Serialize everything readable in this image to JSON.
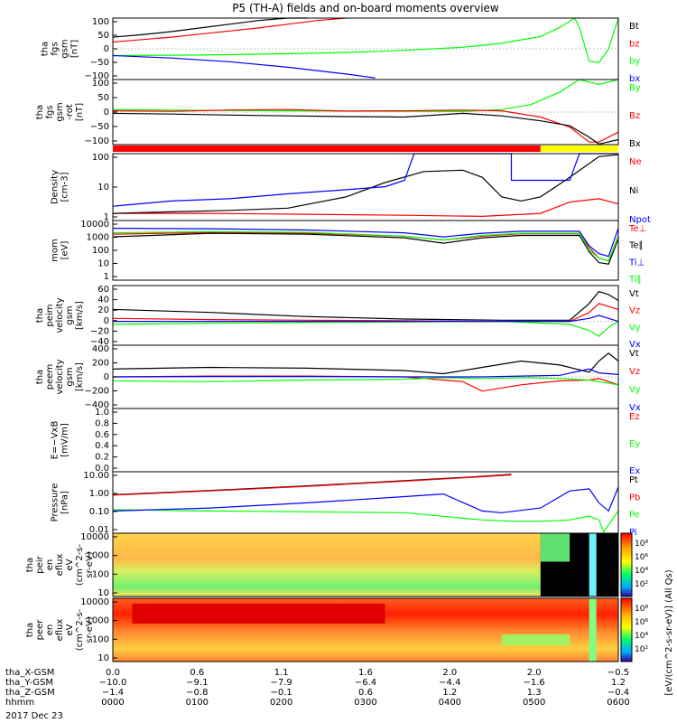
{
  "title": "P5 (TH-A) fields and on-board moments overview",
  "date": "2017 Dec 23",
  "colors": {
    "black": "#000000",
    "red": "#ff0000",
    "green": "#00ff00",
    "blue": "#0000ff",
    "yellow": "#ffff00"
  },
  "chart_data": [
    {
      "type": "line",
      "panel": "fgs",
      "ylabel": [
        "tha",
        "fgs",
        "gsm",
        "[nT]"
      ],
      "yticks": [
        "100",
        "50",
        "0",
        "−50",
        "−100"
      ],
      "ylim": [
        -100,
        100
      ],
      "series": [
        {
          "name": "Bt",
          "color": "#000000",
          "x": [
            0,
            30,
            60,
            90,
            120,
            150,
            180,
            200
          ],
          "y": [
            38,
            46,
            56,
            68,
            80,
            92,
            100,
            102
          ]
        },
        {
          "name": "bz",
          "color": "#ff0000",
          "x": [
            0,
            30,
            60,
            90,
            120,
            150,
            180,
            210,
            240
          ],
          "y": [
            22,
            30,
            38,
            48,
            58,
            68,
            80,
            92,
            100
          ]
        },
        {
          "name": "by",
          "color": "#00ff00",
          "x": [
            0,
            60,
            120,
            180,
            240,
            300,
            360,
            400,
            440,
            460,
            470,
            475,
            480,
            490,
            500,
            510,
            520
          ],
          "y": [
            -22,
            -21,
            -19,
            -16,
            -12,
            -5,
            5,
            18,
            40,
            70,
            90,
            100,
            70,
            -40,
            -45,
            0,
            100
          ]
        },
        {
          "name": "bx",
          "color": "#0000ff",
          "x": [
            0,
            60,
            120,
            180,
            240,
            270
          ],
          "y": [
            -22,
            -30,
            -42,
            -60,
            -82,
            -95
          ]
        }
      ]
    },
    {
      "type": "line",
      "panel": "fgs-rot",
      "ylabel": [
        "tha",
        "fgs",
        "gsm",
        "-rot",
        "[nT]"
      ],
      "yticks": [
        "100",
        "50",
        "0",
        "−50",
        "−100"
      ],
      "ylim": [
        -130,
        130
      ],
      "series": [
        {
          "name": "By",
          "color": "#00ff00",
          "x": [
            0,
            60,
            120,
            180,
            240,
            300,
            360,
            400,
            430,
            460,
            480,
            500,
            520
          ],
          "y": [
            10,
            8,
            6,
            5,
            4,
            3,
            2,
            10,
            30,
            80,
            130,
            110,
            130
          ]
        },
        {
          "name": "Bz",
          "color": "#ff0000",
          "x": [
            0,
            60,
            120,
            180,
            240,
            300,
            360,
            400,
            440,
            470,
            490,
            500,
            520
          ],
          "y": [
            5,
            3,
            8,
            10,
            4,
            5,
            8,
            5,
            -20,
            -60,
            -120,
            -120,
            -80
          ]
        },
        {
          "name": "Bx",
          "color": "#000000",
          "x": [
            0,
            60,
            120,
            180,
            240,
            300,
            360,
            400,
            440,
            470,
            490,
            500,
            520
          ],
          "y": [
            -5,
            -8,
            -12,
            -15,
            -18,
            -20,
            -5,
            -15,
            -35,
            -55,
            -100,
            -128,
            -110
          ]
        }
      ]
    },
    {
      "type": "line",
      "panel": "density",
      "ylabel": [
        "Density",
        "[cm-3]"
      ],
      "yticks": [
        "100",
        "10",
        "1"
      ],
      "ylim": [
        0.3,
        200
      ],
      "scale": "log",
      "series": [
        {
          "name": "Ne",
          "color": "#ff0000",
          "x": [
            0,
            100,
            200,
            300,
            380,
            440,
            470,
            500,
            520
          ],
          "y": [
            0.6,
            0.6,
            0.55,
            0.5,
            0.45,
            0.6,
            1.8,
            2.5,
            1.5
          ]
        },
        {
          "name": "Ni",
          "color": "#000000",
          "x": [
            0,
            60,
            120,
            180,
            240,
            280,
            320,
            360,
            380,
            400,
            420,
            440,
            470,
            500,
            520
          ],
          "y": [
            0.6,
            0.7,
            0.8,
            1.0,
            3,
            12,
            35,
            40,
            20,
            3,
            2,
            3,
            20,
            150,
            180
          ]
        },
        {
          "name": "Npot",
          "color": "#0000ff",
          "x": [
            0,
            60,
            120,
            180,
            240,
            280,
            300,
            310,
            410,
            410,
            470,
            480,
            500,
            520
          ],
          "y": [
            1.2,
            2,
            2.5,
            4,
            6,
            8,
            15,
            200,
            200,
            15,
            15,
            200,
            200,
            200
          ]
        }
      ]
    },
    {
      "type": "line",
      "panel": "mom",
      "ylabel": [
        "mom",
        "[eV]"
      ],
      "yticks": [
        "10000",
        "1000",
        "100",
        "10",
        "1"
      ],
      "ylim": [
        1,
        10000
      ],
      "scale": "log",
      "series": [
        {
          "name": "Te⊥",
          "color": "#ff0000",
          "x": [
            0,
            100,
            200,
            300,
            340,
            380,
            420,
            480,
            490,
            500,
            510,
            520
          ],
          "y": [
            1200,
            1600,
            1400,
            900,
            500,
            900,
            1300,
            1300,
            150,
            30,
            20,
            900
          ]
        },
        {
          "name": "Te∥",
          "color": "#000000",
          "x": [
            0,
            100,
            200,
            300,
            340,
            380,
            420,
            480,
            490,
            500,
            510,
            520
          ],
          "y": [
            800,
            1400,
            1200,
            700,
            300,
            700,
            1000,
            1000,
            80,
            15,
            12,
            600
          ]
        },
        {
          "name": "Ti⊥",
          "color": "#0000ff",
          "x": [
            0,
            100,
            200,
            300,
            340,
            380,
            420,
            480,
            490,
            500,
            510,
            520
          ],
          "y": [
            3000,
            2800,
            2300,
            1500,
            800,
            1400,
            1900,
            1900,
            200,
            60,
            40,
            3000
          ]
        },
        {
          "name": "Ti∥",
          "color": "#00ff00",
          "x": [
            0,
            100,
            200,
            300,
            340,
            380,
            420,
            480,
            490,
            500,
            510,
            520
          ],
          "y": [
            1500,
            1800,
            1600,
            900,
            500,
            1000,
            1400,
            1400,
            100,
            30,
            20,
            800
          ]
        }
      ]
    },
    {
      "type": "line",
      "panel": "peim-velocity",
      "ylabel": [
        "tha",
        "peim",
        "velocity",
        "gsm",
        "[km/s]"
      ],
      "yticks": [
        "60",
        "40",
        "20",
        "0",
        "−20",
        "−40"
      ],
      "ylim": [
        -40,
        60
      ],
      "series": [
        {
          "name": "Vt",
          "color": "#000000",
          "x": [
            0,
            100,
            200,
            300,
            400,
            470,
            490,
            500,
            510,
            520
          ],
          "y": [
            20,
            15,
            8,
            4,
            2,
            2,
            30,
            50,
            45,
            35
          ]
        },
        {
          "name": "Vz",
          "color": "#ff0000",
          "x": [
            0,
            100,
            200,
            300,
            400,
            470,
            490,
            500,
            510,
            520
          ],
          "y": [
            5,
            3,
            2,
            1,
            0,
            0,
            15,
            30,
            25,
            20
          ]
        },
        {
          "name": "Vy",
          "color": "#00ff00",
          "x": [
            0,
            100,
            200,
            300,
            400,
            470,
            490,
            500,
            510,
            520
          ],
          "y": [
            -5,
            -3,
            -2,
            -1,
            0,
            -5,
            -15,
            -25,
            -10,
            0
          ]
        },
        {
          "name": "Vx",
          "color": "#0000ff",
          "x": [
            0,
            100,
            200,
            300,
            400,
            470,
            490,
            500,
            510,
            520
          ],
          "y": [
            0,
            0,
            0,
            0,
            0,
            0,
            5,
            10,
            5,
            0
          ]
        }
      ]
    },
    {
      "type": "line",
      "panel": "peem-velocity",
      "ylabel": [
        "tha",
        "peem",
        "velocity",
        "gsm",
        "[km/s]"
      ],
      "yticks": [
        "400",
        "200",
        "0",
        "−200",
        "−400"
      ],
      "ylim": [
        -400,
        400
      ],
      "series": [
        {
          "name": "Vt",
          "color": "#000000",
          "x": [
            0,
            100,
            200,
            300,
            340,
            380,
            420,
            460,
            490,
            500,
            510,
            520
          ],
          "y": [
            100,
            120,
            110,
            80,
            40,
            120,
            200,
            150,
            60,
            200,
            300,
            200
          ]
        },
        {
          "name": "Vz",
          "color": "#ff0000",
          "x": [
            0,
            100,
            200,
            300,
            330,
            360,
            380,
            420,
            460,
            490,
            500,
            520
          ],
          "y": [
            0,
            10,
            10,
            0,
            -30,
            -60,
            -180,
            -100,
            -50,
            -40,
            -20,
            -100
          ]
        },
        {
          "name": "Vy",
          "color": "#00ff00",
          "x": [
            0,
            100,
            200,
            300,
            340,
            380,
            420,
            460,
            490,
            500,
            520
          ],
          "y": [
            -50,
            -60,
            -40,
            -30,
            -10,
            -20,
            -10,
            -20,
            -40,
            -60,
            -100
          ]
        },
        {
          "name": "Vx",
          "color": "#0000ff",
          "x": [
            0,
            100,
            200,
            300,
            340,
            380,
            420,
            460,
            490,
            500,
            520
          ],
          "y": [
            0,
            5,
            5,
            0,
            0,
            0,
            10,
            20,
            100,
            50,
            30
          ]
        }
      ]
    },
    {
      "type": "line",
      "panel": "efield",
      "ylabel": [
        "E=−VxB",
        "[mV/m]"
      ],
      "yticks": [
        "1.0",
        "0.8",
        "0.6",
        "0.4",
        "0.2",
        "0.0"
      ],
      "ylim": [
        0,
        1
      ],
      "series": [
        {
          "name": "Ez",
          "color": "#ff0000",
          "x": [],
          "y": []
        },
        {
          "name": "Ey",
          "color": "#00ff00",
          "x": [],
          "y": []
        },
        {
          "name": "Ex",
          "color": "#0000ff",
          "x": [],
          "y": []
        }
      ]
    },
    {
      "type": "line",
      "panel": "pressure",
      "ylabel": [
        "Pressure",
        "[nPa]"
      ],
      "yticks": [
        "10.00",
        "1.00",
        "0.10",
        "0.01"
      ],
      "ylim": [
        0.005,
        20
      ],
      "scale": "log",
      "series": [
        {
          "name": "Pt",
          "color": "#000000",
          "x": [
            0,
            100,
            200,
            300,
            370,
            410
          ],
          "y": [
            0.9,
            1.6,
            3,
            6,
            10,
            14
          ]
        },
        {
          "name": "Pb",
          "color": "#ff0000",
          "x": [
            0,
            100,
            200,
            300,
            370,
            410
          ],
          "y": [
            0.85,
            1.5,
            2.8,
            5.6,
            9.5,
            13
          ]
        },
        {
          "name": "Pe",
          "color": "#00ff00",
          "x": [
            0,
            100,
            200,
            300,
            380,
            410,
            440,
            470,
            490,
            500,
            505,
            520
          ],
          "y": [
            0.12,
            0.1,
            0.09,
            0.08,
            0.03,
            0.025,
            0.025,
            0.03,
            0.05,
            0.03,
            0.006,
            0.1
          ]
        },
        {
          "name": "Pi",
          "color": "#0000ff",
          "x": [
            0,
            100,
            200,
            300,
            340,
            380,
            400,
            440,
            470,
            490,
            500,
            510,
            520
          ],
          "y": [
            0.1,
            0.15,
            0.3,
            0.7,
            1.0,
            0.1,
            0.08,
            0.15,
            1.5,
            2.0,
            0.3,
            0.1,
            2.5
          ]
        }
      ]
    },
    {
      "type": "heatmap",
      "panel": "peir-en-eflux",
      "ylabel": [
        "tha",
        "peir",
        "en",
        "eflux",
        "eV",
        "(cm^2-s-",
        "sr-eV)"
      ],
      "yticks": [
        "10000",
        "1000",
        "100",
        "10"
      ],
      "ylim": [
        5,
        30000
      ],
      "scale": "log"
    },
    {
      "type": "heatmap",
      "panel": "peer-en-eflux",
      "ylabel": [
        "tha",
        "peer",
        "en",
        "eflux",
        "eV",
        "(cm^2-s-",
        "sr-eV)"
      ],
      "yticks": [
        "10000",
        "1000",
        "100",
        "10"
      ],
      "ylim": [
        5,
        30000
      ],
      "scale": "log"
    }
  ],
  "colorbar": {
    "label": "[eV/(cm^2-s-sr-eV)] (All Qs)",
    "ticks_top": [
      "10⁸",
      "10⁶",
      "10⁴",
      "10²"
    ],
    "ticks_bottom": [
      "10⁸",
      "10⁶",
      "10⁴",
      "10²"
    ]
  },
  "xaxis": {
    "row_labels": [
      "tha_X-GSM",
      "tha_Y-GSM",
      "tha_Z-GSM",
      "hhmm"
    ],
    "rows": [
      [
        "0.0",
        "0.6",
        "1.1",
        "1.6",
        "2.0",
        "2.0",
        "1.5"
      ],
      [
        "−10.0",
        "−9.1",
        "−7.9",
        "−6.4",
        "−4.4",
        "−1.6",
        "1.2"
      ],
      [
        "−1.4",
        "−0.8",
        "−0.1",
        "0.6",
        "1.2",
        "1.3",
        "−0.4"
      ],
      [
        "0000",
        "0100",
        "0200",
        "0300",
        "0400",
        "0500",
        "0600"
      ]
    ],
    "last_row0": "−0.5"
  }
}
